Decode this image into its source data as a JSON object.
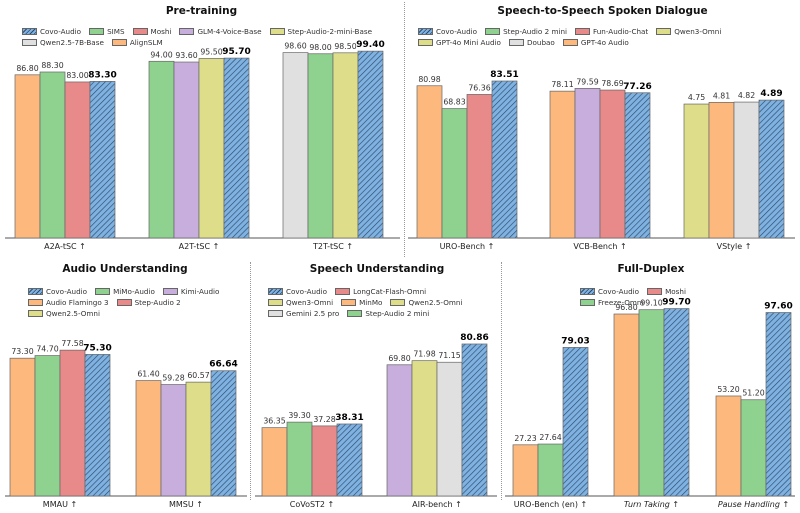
{
  "colors": {
    "Covo-Audio": "#7fb2e0",
    "SIMS": "#8fd18f",
    "Moshi": "#e88a8a",
    "GLM-4-Voice-Base": "#c7aedc",
    "Step-Audio-2-mini-Base": "#dede8a",
    "Qwen2.5-7B-Base": "#e0e0e0",
    "AlignSLM": "#fdb97d",
    "Step-Audio 2 mini": "#8fd18f",
    "Fun-Audio-Chat": "#e88a8a",
    "Qwen3-Omni": "#dede8a",
    "GPT-4o Mini Audio": "#dede8a",
    "Doubao": "#e0e0e0",
    "GPT-4o Audio": "#fdb97d",
    "MiMo-Audio": "#8fd18f",
    "Kimi-Audio": "#c7aedc",
    "Audio Flamingo 3": "#fdb97d",
    "Step-Audio 2": "#e88a8a",
    "Qwen2.5-Omni": "#dede8a",
    "LongCat-Flash-Omni": "#e88a8a",
    "MinMo": "#fdb97d",
    "Gemini 2.5 pro": "#e0e0e0",
    "Freeze-Omni": "#8fd18f",
    "hatch": "#2c4a6e"
  },
  "chart_data": [
    {
      "type": "bar",
      "title": "Pre-training",
      "legend": [
        "Covo-Audio",
        "SIMS",
        "Moshi",
        "GLM-4-Voice-Base",
        "Step-Audio-2-mini-Base",
        "Qwen2.5-7B-Base",
        "AlignSLM"
      ],
      "groups": [
        {
          "label": "A2A-tSC ↑",
          "bars": [
            {
              "model": "AlignSLM",
              "value": 86.8
            },
            {
              "model": "SIMS",
              "value": 88.3
            },
            {
              "model": "Moshi",
              "value": 83.0
            },
            {
              "model": "Covo-Audio",
              "value": 83.3
            }
          ]
        },
        {
          "label": "A2T-tSC ↑",
          "bars": [
            {
              "model": "SIMS",
              "value": 94.0
            },
            {
              "model": "GLM-4-Voice-Base",
              "value": 93.6
            },
            {
              "model": "Step-Audio-2-mini-Base",
              "value": 95.5
            },
            {
              "model": "Covo-Audio",
              "value": 95.7
            }
          ]
        },
        {
          "label": "T2T-tSC ↑",
          "bars": [
            {
              "model": "Qwen2.5-7B-Base",
              "value": 98.6
            },
            {
              "model": "SIMS",
              "value": 98.0
            },
            {
              "model": "Step-Audio-2-mini-Base",
              "value": 98.5
            },
            {
              "model": "Covo-Audio",
              "value": 99.4
            }
          ]
        }
      ]
    },
    {
      "type": "bar",
      "title": "Speech-to-Speech Spoken Dialogue",
      "legend": [
        "Covo-Audio",
        "Step-Audio 2 mini",
        "Fun-Audio-Chat",
        "Qwen3-Omni",
        "GPT-4o Mini Audio",
        "Doubao",
        "GPT-4o Audio"
      ],
      "groups": [
        {
          "label": "URO-Bench ↑",
          "bars": [
            {
              "model": "GPT-4o Audio",
              "value": 80.98
            },
            {
              "model": "Step-Audio 2 mini",
              "value": 68.83
            },
            {
              "model": "Fun-Audio-Chat",
              "value": 76.36
            },
            {
              "model": "Covo-Audio",
              "value": 83.51
            }
          ]
        },
        {
          "label": "VCB-Bench ↑",
          "bars": [
            {
              "model": "GPT-4o Audio",
              "value": 78.11
            },
            {
              "model": "Kimi-Audio",
              "value": 79.59
            },
            {
              "model": "Fun-Audio-Chat",
              "value": 78.69
            },
            {
              "model": "Covo-Audio",
              "value": 77.26
            }
          ]
        },
        {
          "label": "VStyle ↑",
          "bars": [
            {
              "model": "GPT-4o Mini Audio",
              "value": 4.75
            },
            {
              "model": "GPT-4o Audio",
              "value": 4.81
            },
            {
              "model": "Doubao",
              "value": 4.82
            },
            {
              "model": "Covo-Audio",
              "value": 4.89
            }
          ]
        }
      ]
    },
    {
      "type": "bar",
      "title": "Audio Understanding",
      "legend": [
        "Covo-Audio",
        "MiMo-Audio",
        "Kimi-Audio",
        "Audio Flamingo 3",
        "Step-Audio 2",
        "Qwen2.5-Omni"
      ],
      "groups": [
        {
          "label": "MMAU ↑",
          "bars": [
            {
              "model": "Audio Flamingo 3",
              "value": 73.3
            },
            {
              "model": "MiMo-Audio",
              "value": 74.7
            },
            {
              "model": "Step-Audio 2",
              "value": 77.58
            },
            {
              "model": "Covo-Audio",
              "value": 75.3
            }
          ]
        },
        {
          "label": "MMSU ↑",
          "bars": [
            {
              "model": "Audio Flamingo 3",
              "value": 61.4
            },
            {
              "model": "Kimi-Audio",
              "value": 59.28
            },
            {
              "model": "Qwen2.5-Omni",
              "value": 60.57
            },
            {
              "model": "Covo-Audio",
              "value": 66.64
            }
          ]
        }
      ]
    },
    {
      "type": "bar",
      "title": "Speech Understanding",
      "legend": [
        "Covo-Audio",
        "LongCat-Flash-Omni",
        "Qwen3-Omni",
        "MinMo",
        "Qwen2.5-Omni",
        "Gemini 2.5 pro",
        "Step-Audio 2 mini"
      ],
      "groups": [
        {
          "label": "CoVoST2 ↑",
          "bars": [
            {
              "model": "MinMo",
              "value": 36.35
            },
            {
              "model": "Step-Audio 2 mini",
              "value": 39.3
            },
            {
              "model": "LongCat-Flash-Omni",
              "value": 37.28
            },
            {
              "model": "Covo-Audio",
              "value": 38.31
            }
          ]
        },
        {
          "label": "AIR-bench ↑",
          "bars": [
            {
              "model": "Kimi-Audio",
              "value": 69.8
            },
            {
              "model": "Qwen3-Omni",
              "value": 71.98
            },
            {
              "model": "Gemini 2.5 pro",
              "value": 71.15
            },
            {
              "model": "Covo-Audio",
              "value": 80.86
            }
          ]
        }
      ]
    },
    {
      "type": "bar",
      "title": "Full-Duplex",
      "legend": [
        "Covo-Audio",
        "Moshi",
        "Freeze-Omni"
      ],
      "groups": [
        {
          "label": "URO-Bench (en) ↑",
          "italic": false,
          "bars": [
            {
              "model": "Audio Flamingo 3",
              "value": 27.23
            },
            {
              "model": "Freeze-Omni",
              "value": 27.64
            },
            {
              "model": "Covo-Audio",
              "value": 79.03
            }
          ]
        },
        {
          "label": "Turn Taking ↑",
          "italic": true,
          "bars": [
            {
              "model": "Audio Flamingo 3",
              "value": 96.8
            },
            {
              "model": "Freeze-Omni",
              "value": 99.1
            },
            {
              "model": "Covo-Audio",
              "value": 99.7
            }
          ]
        },
        {
          "label": "Pause Handling ↑",
          "italic": true,
          "bars": [
            {
              "model": "Audio Flamingo 3",
              "value": 53.2
            },
            {
              "model": "Freeze-Omni",
              "value": 51.2
            },
            {
              "model": "Covo-Audio",
              "value": 97.6
            }
          ]
        }
      ]
    }
  ]
}
